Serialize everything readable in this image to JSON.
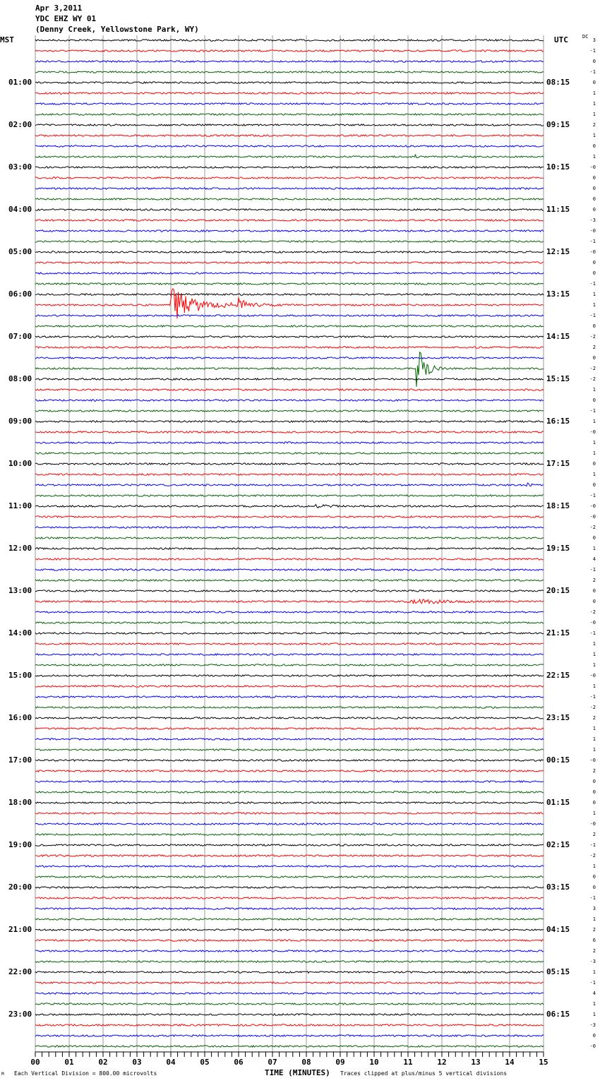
{
  "header": {
    "date": "Apr 3,2011",
    "station": "YDC EHZ WY 01",
    "location": "(Denny Creek, Yellowstone Park, WY)"
  },
  "left_tz": "MST",
  "right_tz": "UTC",
  "dc_label": "DC",
  "footer": {
    "scale": "Each Vertical Division =  800.00 microvolts",
    "clip": "Traces clipped at plus/minus 5 vertical divisions",
    "corner": "M"
  },
  "colors": [
    "#000000",
    "#ff0000",
    "#0000ff",
    "#006400"
  ],
  "chart_data": {
    "type": "line",
    "title": "YDC EHZ WY 01 helicorder",
    "xlabel": "TIME (MINUTES)",
    "xlim": [
      0,
      15
    ],
    "x_ticks": [
      "00",
      "01",
      "02",
      "03",
      "04",
      "05",
      "06",
      "07",
      "08",
      "09",
      "10",
      "11",
      "12",
      "13",
      "14",
      "15"
    ],
    "left_labels": [
      "01:00",
      "02:00",
      "03:00",
      "04:00",
      "05:00",
      "06:00",
      "07:00",
      "08:00",
      "09:00",
      "10:00",
      "11:00",
      "12:00",
      "13:00",
      "14:00",
      "15:00",
      "16:00",
      "17:00",
      "18:00",
      "19:00",
      "20:00",
      "21:00",
      "22:00",
      "23:00"
    ],
    "right_labels": [
      "08:15",
      "09:15",
      "10:15",
      "11:15",
      "12:15",
      "13:15",
      "14:15",
      "15:15",
      "16:15",
      "17:15",
      "18:15",
      "19:15",
      "20:15",
      "21:15",
      "22:15",
      "23:15",
      "00:15",
      "01:15",
      "02:15",
      "03:15",
      "04:15",
      "05:15",
      "06:15"
    ],
    "dc_offsets": [
      "3",
      "-1",
      "0",
      "-1",
      "0",
      "1",
      "1",
      "1",
      "2",
      "1",
      "0",
      "1",
      "-0",
      "0",
      "0",
      "0",
      "0",
      "-3",
      "-0",
      "-1",
      "-0",
      "0",
      "0",
      "-1",
      "1",
      "1",
      "-1",
      "0",
      "-2",
      "2",
      "0",
      "-2",
      "-2",
      "1",
      "0",
      "-1",
      "1",
      "-0",
      "1",
      "1",
      "0",
      "1",
      "0",
      "-1",
      "-0",
      "-0",
      "-2",
      "0",
      "1",
      "4",
      "-1",
      "2",
      "0",
      "0",
      "-2",
      "-0",
      "-1",
      "1",
      "1",
      "1",
      "-0",
      "1",
      "-1",
      "-2",
      "2",
      "1",
      "1",
      "1",
      "-0",
      "2",
      "0",
      "0",
      "0",
      "1",
      "-0",
      "2",
      "-1",
      "-2",
      "1",
      "0",
      "0",
      "-1",
      "3",
      "1",
      "2",
      "6",
      "2",
      "-3",
      "1",
      "-1",
      "4",
      "1",
      "1",
      "-3",
      "0",
      "-0"
    ],
    "events": [
      {
        "row": 5,
        "minute": 0.7,
        "amp": 10,
        "dur": 0.1
      },
      {
        "row": 11,
        "minute": 11.15,
        "amp": 7,
        "dur": 0.3
      },
      {
        "row": 25,
        "minute": 4.0,
        "amp": 25,
        "dur": 3.5
      },
      {
        "row": 25,
        "minute": 6.0,
        "amp": 8,
        "dur": 1.5
      },
      {
        "row": 29,
        "minute": 9.1,
        "amp": 6,
        "dur": 0.05
      },
      {
        "row": 31,
        "minute": 11.25,
        "amp": 40,
        "dur": 1.0
      },
      {
        "row": 42,
        "minute": 14.5,
        "amp": 3,
        "dur": 0.5
      },
      {
        "row": 44,
        "minute": 8.2,
        "amp": 3,
        "dur": 1.5
      },
      {
        "row": 53,
        "minute": 11.0,
        "amp": 4,
        "dur": 4.0
      },
      {
        "row": 82,
        "minute": 7.7,
        "amp": 8,
        "dur": 0.05
      }
    ]
  }
}
